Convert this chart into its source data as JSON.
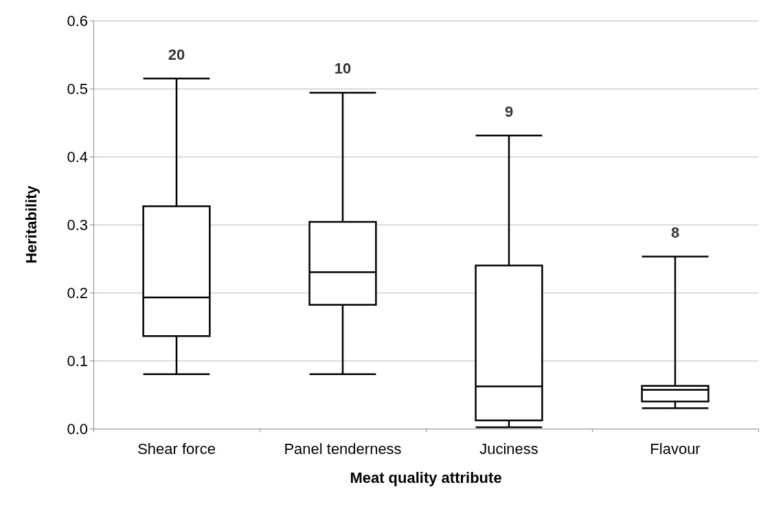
{
  "chart_data": {
    "type": "box",
    "xlabel": "Meat quality attribute",
    "ylabel": "Heritability",
    "categories": [
      "Shear force",
      "Panel tenderness",
      "Juciness",
      "Flavour"
    ],
    "boxes": [
      {
        "low": 0.08,
        "q1": 0.136,
        "median": 0.193,
        "q3": 0.327,
        "high": 0.515
      },
      {
        "low": 0.08,
        "q1": 0.182,
        "median": 0.23,
        "q3": 0.304,
        "high": 0.494
      },
      {
        "low": 0.002,
        "q1": 0.012,
        "median": 0.062,
        "q3": 0.24,
        "high": 0.431
      },
      {
        "low": 0.03,
        "q1": 0.04,
        "median": 0.057,
        "q3": 0.063,
        "high": 0.253
      }
    ],
    "color": "#000000",
    "ylim": [
      0,
      0.6
    ],
    "yticks": [
      {
        "value": 0,
        "label": "0.0"
      },
      {
        "value": 0.1,
        "label": "0.1"
      },
      {
        "value": 0.2,
        "label": "0.2"
      },
      {
        "value": 0.3,
        "label": "0.3"
      },
      {
        "value": 0.4,
        "label": "0.4"
      },
      {
        "value": 0.5,
        "label": "0.5"
      },
      {
        "value": 0.6,
        "label": "0.6"
      }
    ],
    "grid": "y",
    "annotations": [
      {
        "text": "20",
        "x": "Shear force",
        "y": 0.515
      },
      {
        "text": "10",
        "x": "Panel tenderness",
        "y": 0.494
      },
      {
        "text": "9",
        "x": "Juciness",
        "y": 0.431
      },
      {
        "text": "8",
        "x": "Flavour",
        "y": 0.253
      }
    ]
  }
}
